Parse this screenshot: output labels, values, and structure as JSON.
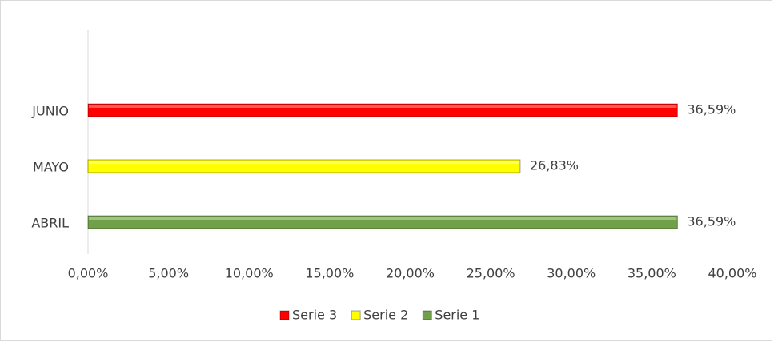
{
  "chart_data": {
    "type": "bar",
    "orientation": "horizontal",
    "categories": [
      "ABRIL",
      "MAYO",
      "JUNIO"
    ],
    "series": [
      {
        "name": "Serie 1",
        "color": "#70a048",
        "values": [
          36.59,
          null,
          null
        ],
        "value_labels": [
          "36,59%",
          null,
          null
        ]
      },
      {
        "name": "Serie 2",
        "color": "#ffff00",
        "values": [
          null,
          26.83,
          null
        ],
        "value_labels": [
          null,
          "26,83%",
          null
        ]
      },
      {
        "name": "Serie 3",
        "color": "#ff0000",
        "values": [
          null,
          null,
          36.59
        ],
        "value_labels": [
          null,
          null,
          "36,59%"
        ]
      }
    ],
    "xlim": [
      0,
      40
    ],
    "xticks": [
      {
        "value": 0,
        "label": "0,00%"
      },
      {
        "value": 5,
        "label": "5,00%"
      },
      {
        "value": 10,
        "label": "10,00%"
      },
      {
        "value": 15,
        "label": "15,00%"
      },
      {
        "value": 20,
        "label": "20,00%"
      },
      {
        "value": 25,
        "label": "25,00%"
      },
      {
        "value": 30,
        "label": "30,00%"
      },
      {
        "value": 35,
        "label": "35,00%"
      },
      {
        "value": 40,
        "label": "40,00%"
      }
    ],
    "grid": false,
    "legend": "bottom"
  }
}
